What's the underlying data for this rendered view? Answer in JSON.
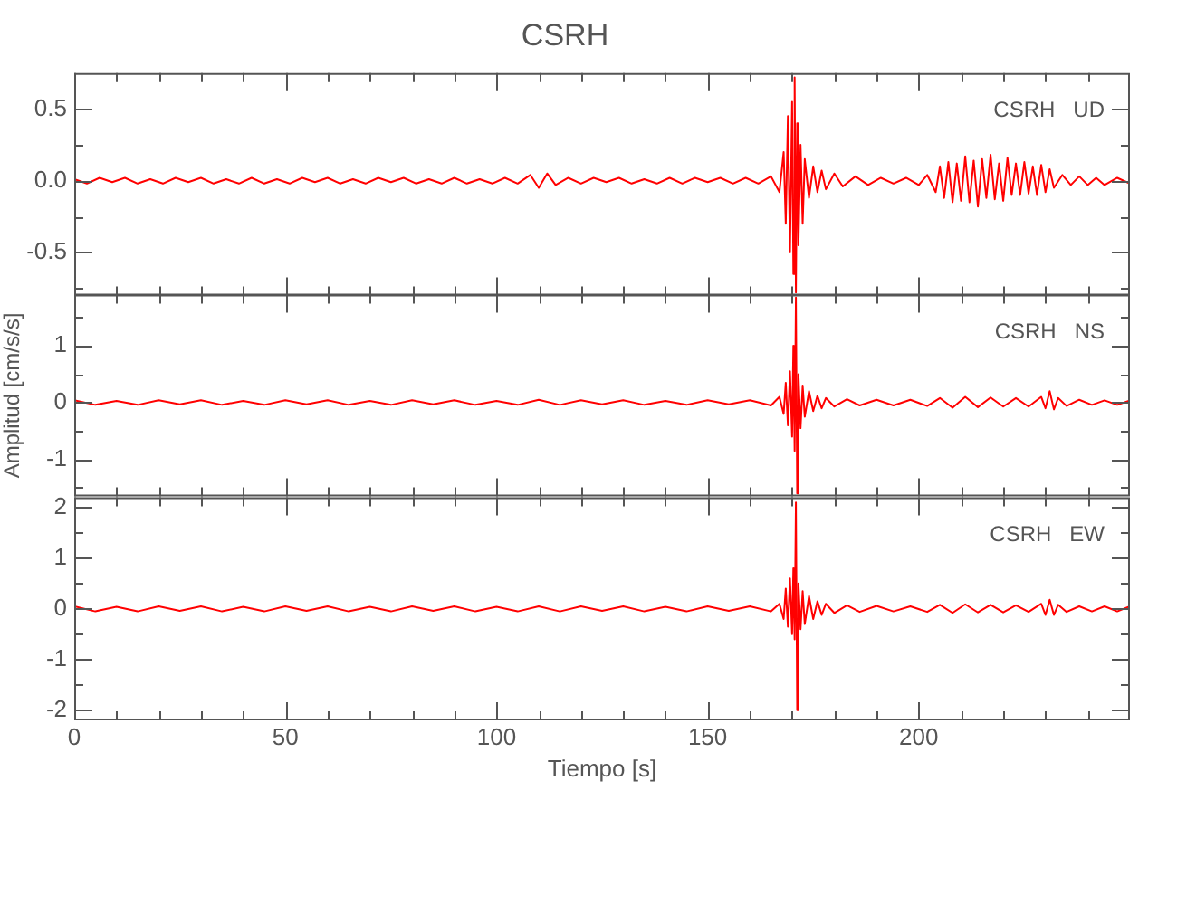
{
  "chart_data": [
    {
      "type": "line",
      "title": "CSRH",
      "annotations": [
        "CSRH   UD"
      ],
      "tick_labels": "y",
      "grid": false,
      "legend": false,
      "xlim": [
        0,
        250
      ],
      "xticks": [
        0,
        {
          "value": 10,
          "label": null
        },
        {
          "value": 20,
          "label": null
        },
        {
          "value": 30,
          "label": null
        },
        {
          "value": 40,
          "label": null
        },
        50,
        {
          "value": 60,
          "label": null
        },
        {
          "value": 70,
          "label": null
        },
        {
          "value": 80,
          "label": null
        },
        {
          "value": 90,
          "label": null
        },
        100,
        {
          "value": 110,
          "label": null
        },
        {
          "value": 120,
          "label": null
        },
        {
          "value": 130,
          "label": null
        },
        {
          "value": 140,
          "label": null
        },
        150,
        {
          "value": 160,
          "label": null
        },
        {
          "value": 170,
          "label": null
        },
        {
          "value": 180,
          "label": null
        },
        {
          "value": 190,
          "label": null
        },
        200,
        {
          "value": 210,
          "label": null
        },
        {
          "value": 220,
          "label": null
        },
        {
          "value": 230,
          "label": null
        },
        {
          "value": 240,
          "label": null
        }
      ],
      "ylim": [
        -0.8,
        0.75
      ],
      "yticks": [
        0.5,
        {
          "value": 0.25,
          "label": null
        },
        {
          "value": 0,
          "label": "0.0"
        },
        {
          "value": -0.25,
          "label": null
        },
        -0.5,
        {
          "value": -0.75,
          "label": null
        }
      ],
      "x": [
        0,
        3,
        6,
        9,
        12,
        15,
        18,
        21,
        24,
        27,
        30,
        33,
        36,
        39,
        42,
        45,
        48,
        51,
        54,
        57,
        60,
        63,
        66,
        69,
        72,
        75,
        78,
        81,
        84,
        87,
        90,
        93,
        96,
        99,
        102,
        105,
        108,
        110,
        112,
        114,
        117,
        120,
        123,
        126,
        129,
        132,
        135,
        138,
        141,
        144,
        147,
        150,
        153,
        156,
        159,
        162,
        165,
        167,
        168,
        168.5,
        169,
        169.5,
        170,
        170.3,
        170.6,
        170.9,
        171.2,
        171.5,
        172,
        172.5,
        173,
        174,
        175,
        176,
        177,
        178,
        180,
        182,
        185,
        188,
        191,
        194,
        197,
        200,
        202,
        204,
        205,
        206,
        207,
        208,
        209,
        210,
        211,
        212,
        213,
        214,
        215,
        216,
        217,
        218,
        219,
        220,
        221,
        222,
        223,
        224,
        225,
        226,
        227,
        228,
        229,
        230,
        231,
        232,
        234,
        236,
        238,
        240,
        242,
        244,
        247,
        250
      ],
      "series": [
        {
          "color": "#ff0000",
          "values": [
            0.01,
            -0.02,
            0.02,
            -0.01,
            0.02,
            -0.02,
            0.01,
            -0.02,
            0.02,
            -0.01,
            0.02,
            -0.02,
            0.01,
            -0.02,
            0.02,
            -0.02,
            0.01,
            -0.02,
            0.02,
            -0.01,
            0.02,
            -0.02,
            0.01,
            -0.02,
            0.02,
            -0.01,
            0.02,
            -0.02,
            0.01,
            -0.02,
            0.02,
            -0.02,
            0.01,
            -0.02,
            0.02,
            -0.02,
            0.04,
            -0.05,
            0.05,
            -0.03,
            0.02,
            -0.02,
            0.02,
            -0.01,
            0.02,
            -0.02,
            0.01,
            -0.02,
            0.02,
            -0.02,
            0.02,
            -0.01,
            0.02,
            -0.02,
            0.02,
            -0.02,
            0.03,
            -0.08,
            0.2,
            -0.3,
            0.45,
            -0.5,
            0.55,
            -0.65,
            0.72,
            -0.78,
            0.4,
            -0.45,
            0.25,
            -0.3,
            0.15,
            -0.12,
            0.1,
            -0.08,
            0.07,
            -0.06,
            0.05,
            -0.04,
            0.03,
            -0.03,
            0.02,
            -0.02,
            0.02,
            -0.03,
            0.04,
            -0.08,
            0.1,
            -0.12,
            0.13,
            -0.15,
            0.12,
            -0.14,
            0.17,
            -0.15,
            0.14,
            -0.18,
            0.15,
            -0.12,
            0.18,
            -0.13,
            0.12,
            -0.14,
            0.16,
            -0.1,
            0.12,
            -0.1,
            0.13,
            -0.09,
            0.1,
            -0.1,
            0.11,
            -0.08,
            0.08,
            -0.05,
            0.04,
            -0.03,
            0.03,
            -0.03,
            0.02,
            -0.03,
            0.02,
            -0.02
          ]
        }
      ]
    },
    {
      "type": "line",
      "annotations": [
        "CSRH   NS"
      ],
      "ylabel": "Amplitud [cm/s/s]",
      "tick_labels": "y",
      "grid": false,
      "legend": false,
      "xlim": [
        0,
        250
      ],
      "xticks": [
        0,
        {
          "value": 10,
          "label": null
        },
        {
          "value": 20,
          "label": null
        },
        {
          "value": 30,
          "label": null
        },
        {
          "value": 40,
          "label": null
        },
        50,
        {
          "value": 60,
          "label": null
        },
        {
          "value": 70,
          "label": null
        },
        {
          "value": 80,
          "label": null
        },
        {
          "value": 90,
          "label": null
        },
        100,
        {
          "value": 110,
          "label": null
        },
        {
          "value": 120,
          "label": null
        },
        {
          "value": 130,
          "label": null
        },
        {
          "value": 140,
          "label": null
        },
        150,
        {
          "value": 160,
          "label": null
        },
        {
          "value": 170,
          "label": null
        },
        {
          "value": 180,
          "label": null
        },
        {
          "value": 190,
          "label": null
        },
        200,
        {
          "value": 210,
          "label": null
        },
        {
          "value": 220,
          "label": null
        },
        {
          "value": 230,
          "label": null
        },
        {
          "value": 240,
          "label": null
        }
      ],
      "ylim": [
        -1.65,
        1.9
      ],
      "yticks": [
        {
          "value": 1.5,
          "label": null
        },
        1,
        {
          "value": 0.5,
          "label": null
        },
        0,
        {
          "value": -0.5,
          "label": null
        },
        -1,
        {
          "value": -1.5,
          "label": null
        }
      ],
      "x": [
        0,
        5,
        10,
        15,
        20,
        25,
        30,
        35,
        40,
        45,
        50,
        55,
        60,
        65,
        70,
        75,
        80,
        85,
        90,
        95,
        100,
        105,
        110,
        115,
        120,
        125,
        130,
        135,
        140,
        145,
        150,
        155,
        160,
        165,
        167,
        168,
        168.5,
        169,
        169.5,
        170,
        170.3,
        170.6,
        170.9,
        171.2,
        171.5,
        172,
        172.5,
        173,
        174,
        175,
        176,
        177,
        178,
        180,
        183,
        186,
        190,
        194,
        198,
        202,
        205,
        208,
        211,
        214,
        217,
        220,
        223,
        226,
        229,
        230,
        231,
        232,
        233,
        235,
        238,
        241,
        244,
        247,
        250
      ],
      "series": [
        {
          "color": "#ff0000",
          "values": [
            0.04,
            -0.04,
            0.03,
            -0.04,
            0.04,
            -0.03,
            0.04,
            -0.04,
            0.03,
            -0.04,
            0.04,
            -0.03,
            0.04,
            -0.04,
            0.03,
            -0.04,
            0.04,
            -0.03,
            0.04,
            -0.04,
            0.03,
            -0.04,
            0.05,
            -0.04,
            0.04,
            -0.03,
            0.04,
            -0.04,
            0.03,
            -0.04,
            0.04,
            -0.03,
            0.04,
            -0.05,
            0.1,
            -0.2,
            0.35,
            -0.4,
            0.55,
            -0.6,
            1.0,
            -0.85,
            1.85,
            -1.6,
            0.5,
            -0.45,
            0.3,
            -0.25,
            0.2,
            -0.15,
            0.12,
            -0.1,
            0.08,
            -0.07,
            0.06,
            -0.05,
            0.05,
            -0.05,
            0.05,
            -0.06,
            0.08,
            -0.09,
            0.1,
            -0.08,
            0.09,
            -0.07,
            0.08,
            -0.07,
            0.1,
            -0.1,
            0.2,
            -0.12,
            0.08,
            -0.06,
            0.05,
            -0.04,
            0.04,
            -0.04,
            0.04
          ]
        }
      ]
    },
    {
      "type": "line",
      "annotations": [
        "CSRH   EW"
      ],
      "xlabel": "Tiempo [s]",
      "grid": false,
      "legend": false,
      "xlim": [
        0,
        250
      ],
      "xticks": [
        0,
        {
          "value": 10,
          "label": null
        },
        {
          "value": 20,
          "label": null
        },
        {
          "value": 30,
          "label": null
        },
        {
          "value": 40,
          "label": null
        },
        50,
        {
          "value": 60,
          "label": null
        },
        {
          "value": 70,
          "label": null
        },
        {
          "value": 80,
          "label": null
        },
        {
          "value": 90,
          "label": null
        },
        100,
        {
          "value": 110,
          "label": null
        },
        {
          "value": 120,
          "label": null
        },
        {
          "value": 130,
          "label": null
        },
        {
          "value": 140,
          "label": null
        },
        150,
        {
          "value": 160,
          "label": null
        },
        {
          "value": 170,
          "label": null
        },
        {
          "value": 180,
          "label": null
        },
        {
          "value": 190,
          "label": null
        },
        200,
        {
          "value": 210,
          "label": null
        },
        {
          "value": 220,
          "label": null
        },
        {
          "value": 230,
          "label": null
        },
        {
          "value": 240,
          "label": null
        }
      ],
      "ylim": [
        -2.2,
        2.2
      ],
      "yticks": [
        2,
        {
          "value": 1.5,
          "label": null
        },
        1,
        {
          "value": 0.5,
          "label": null
        },
        0,
        {
          "value": -0.5,
          "label": null
        },
        -1,
        {
          "value": -1.5,
          "label": null
        },
        -2
      ],
      "x": [
        0,
        5,
        10,
        15,
        20,
        25,
        30,
        35,
        40,
        45,
        50,
        55,
        60,
        65,
        70,
        75,
        80,
        85,
        90,
        95,
        100,
        105,
        110,
        115,
        120,
        125,
        130,
        135,
        140,
        145,
        150,
        155,
        160,
        165,
        167,
        168,
        168.5,
        169,
        169.5,
        170,
        170.3,
        170.6,
        170.9,
        171.2,
        171.5,
        172,
        172.5,
        173,
        174,
        175,
        176,
        177,
        178,
        180,
        183,
        186,
        190,
        194,
        198,
        202,
        205,
        208,
        211,
        214,
        217,
        220,
        223,
        226,
        229,
        230,
        231,
        232,
        233,
        235,
        238,
        241,
        244,
        247,
        250
      ],
      "series": [
        {
          "color": "#ff0000",
          "values": [
            0.05,
            -0.05,
            0.04,
            -0.05,
            0.05,
            -0.04,
            0.05,
            -0.05,
            0.04,
            -0.05,
            0.05,
            -0.04,
            0.05,
            -0.05,
            0.04,
            -0.05,
            0.05,
            -0.04,
            0.05,
            -0.05,
            0.04,
            -0.05,
            0.05,
            -0.05,
            0.05,
            -0.04,
            0.05,
            -0.05,
            0.04,
            -0.05,
            0.05,
            -0.04,
            0.05,
            -0.05,
            0.1,
            -0.2,
            0.4,
            -0.35,
            0.6,
            -0.5,
            0.8,
            -0.6,
            2.1,
            -2.0,
            0.5,
            -0.4,
            0.35,
            -0.3,
            0.25,
            -0.2,
            0.15,
            -0.12,
            0.1,
            -0.08,
            0.07,
            -0.06,
            0.06,
            -0.05,
            0.05,
            -0.06,
            0.08,
            -0.08,
            0.09,
            -0.07,
            0.08,
            -0.07,
            0.07,
            -0.06,
            0.1,
            -0.12,
            0.18,
            -0.12,
            0.08,
            -0.06,
            0.05,
            -0.05,
            0.05,
            -0.05,
            0.05
          ]
        }
      ]
    }
  ]
}
